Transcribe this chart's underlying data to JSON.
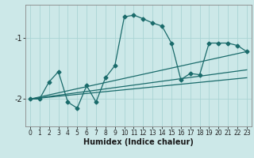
{
  "xlabel": "Humidex (Indice chaleur)",
  "xlim": [
    -0.5,
    23.5
  ],
  "ylim": [
    -2.45,
    -0.45
  ],
  "yticks": [
    -2,
    -1
  ],
  "ytick_labels": [
    "-2",
    "-1"
  ],
  "xticks": [
    0,
    1,
    2,
    3,
    4,
    5,
    6,
    7,
    8,
    9,
    10,
    11,
    12,
    13,
    14,
    15,
    16,
    17,
    18,
    19,
    20,
    21,
    22,
    23
  ],
  "background_color": "#cce8e8",
  "line_color": "#1a6b6b",
  "grid_color": "#aad4d4",
  "main_line": {
    "x": [
      0,
      1,
      2,
      3,
      4,
      5,
      6,
      7,
      8,
      9,
      10,
      11,
      12,
      13,
      14,
      15,
      16,
      17,
      18,
      19,
      20,
      21,
      22,
      23
    ],
    "y": [
      -2.0,
      -2.0,
      -1.72,
      -1.55,
      -2.05,
      -2.15,
      -1.78,
      -2.05,
      -1.65,
      -1.45,
      -0.65,
      -0.62,
      -0.68,
      -0.75,
      -0.8,
      -1.08,
      -1.68,
      -1.58,
      -1.6,
      -1.08,
      -1.08,
      -1.08,
      -1.12,
      -1.22
    ]
  },
  "straight_lines": [
    {
      "x": [
        0,
        23
      ],
      "y": [
        -2.0,
        -1.22
      ]
    },
    {
      "x": [
        0,
        23
      ],
      "y": [
        -2.0,
        -1.52
      ]
    },
    {
      "x": [
        0,
        23
      ],
      "y": [
        -2.0,
        -1.65
      ]
    }
  ]
}
